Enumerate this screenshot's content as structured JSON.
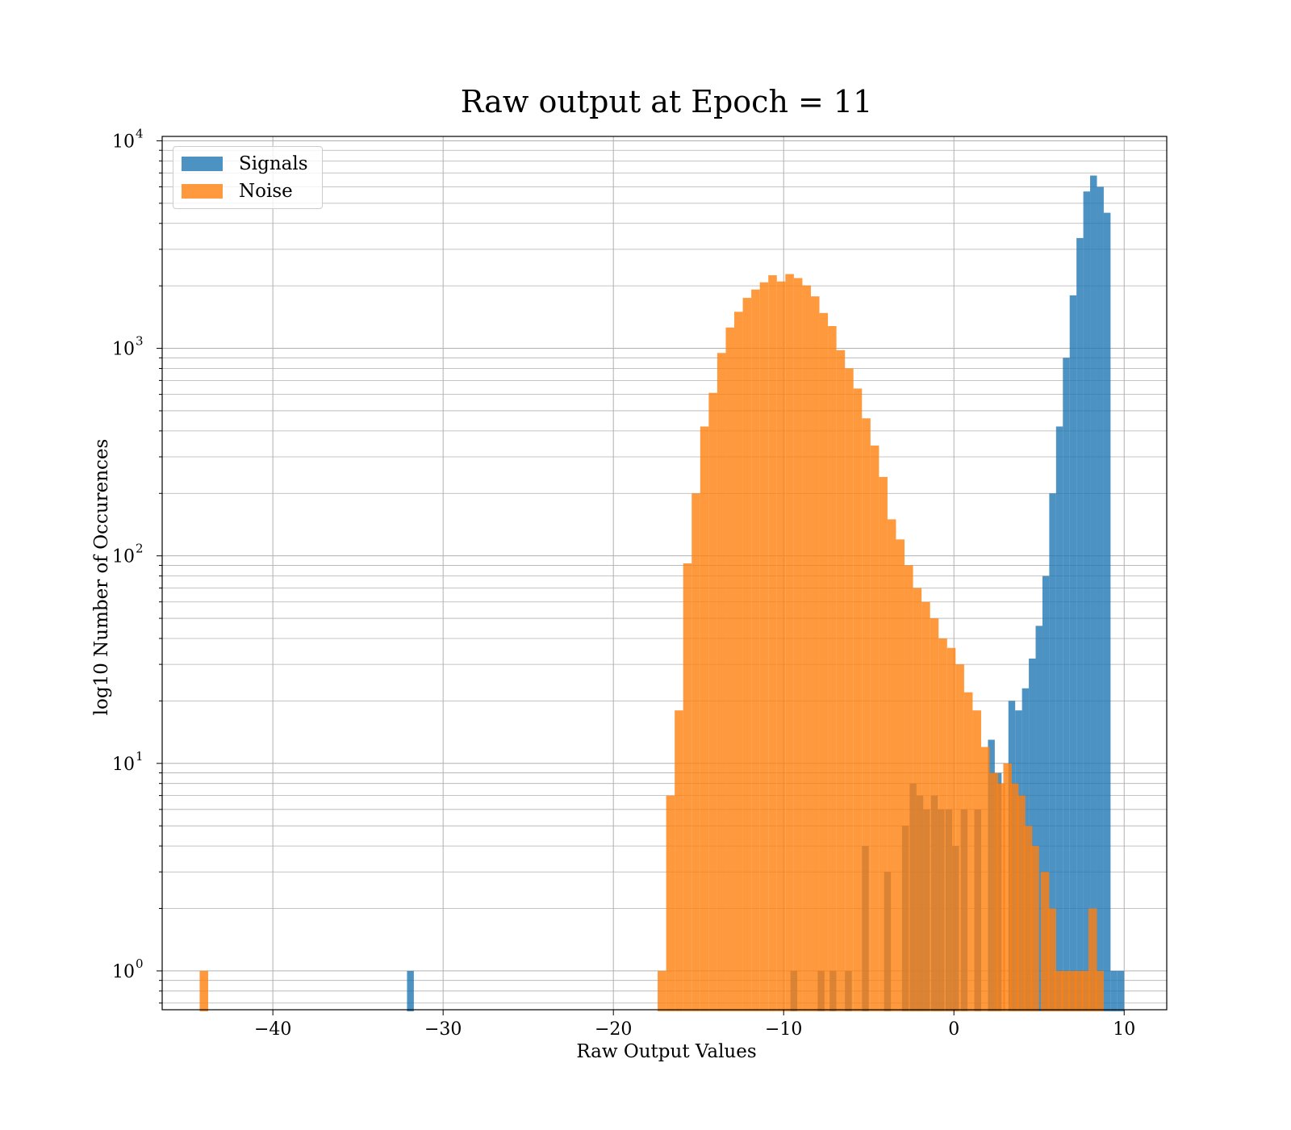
{
  "chart_data": {
    "type": "bar",
    "title": "Raw output at Epoch = 11",
    "xlabel": "Raw Output Values",
    "ylabel": "log10 Number of Occurences",
    "x_range": [
      -46.5,
      12.5
    ],
    "y_range": [
      0.65,
      10500
    ],
    "y_scale": "log",
    "x_ticks": [
      -40,
      -30,
      -20,
      -10,
      0,
      10
    ],
    "x_tick_labels": [
      "−40",
      "−30",
      "−20",
      "−10",
      "0",
      "10"
    ],
    "y_ticks": [
      1,
      10,
      100,
      1000,
      10000
    ],
    "y_tick_labels": [
      "10",
      "10",
      "10",
      "10",
      "10"
    ],
    "y_tick_exponents": [
      "0",
      "1",
      "2",
      "3",
      "4"
    ],
    "grid": true,
    "legend_position": "top-left",
    "series": [
      {
        "name": "Signals",
        "color": "#1f77b4",
        "opacity": 0.8,
        "bin_left_edges": [
          -32.12,
          -9.6,
          -8.0,
          -7.3,
          -6.4,
          -5.4,
          -4.1,
          -3.05,
          -2.6,
          -2.2,
          -1.8,
          -1.35,
          -0.95,
          -0.5,
          -0.1,
          0.4,
          1.2,
          2.0,
          2.4,
          3.2,
          3.6,
          4.0,
          4.4,
          4.8,
          5.2,
          5.6,
          6.0,
          6.4,
          6.8,
          7.2,
          7.6,
          8.0,
          8.4,
          8.8,
          9.2,
          9.6
        ],
        "bin_width": 0.4,
        "values": [
          1,
          1,
          1,
          1,
          1,
          4,
          3,
          5,
          8,
          7,
          6,
          7,
          6,
          6,
          4,
          6,
          6,
          13,
          9,
          20,
          18,
          23,
          32,
          46,
          80,
          200,
          420,
          900,
          1800,
          3400,
          5700,
          6800,
          6000,
          4500,
          1,
          1
        ]
      },
      {
        "name": "Noise",
        "color": "#ff7f0e",
        "opacity": 0.8,
        "bin_left_edges": [
          -44.3,
          -17.4,
          -16.9,
          -16.4,
          -15.9,
          -15.4,
          -14.9,
          -14.4,
          -13.9,
          -13.4,
          -12.9,
          -12.4,
          -11.9,
          -11.4,
          -10.9,
          -10.4,
          -9.9,
          -9.4,
          -8.9,
          -8.4,
          -7.9,
          -7.4,
          -6.9,
          -6.4,
          -5.9,
          -5.4,
          -4.9,
          -4.4,
          -3.9,
          -3.4,
          -2.9,
          -2.4,
          -1.9,
          -1.4,
          -0.9,
          -0.4,
          0.1,
          0.6,
          1.1,
          1.6,
          2.1,
          2.5,
          2.9,
          3.3,
          3.7,
          4.1,
          4.5,
          5.1,
          5.5,
          5.9,
          6.3,
          6.7,
          7.1,
          7.5,
          7.9,
          8.3
        ],
        "bin_width": 0.5,
        "values": [
          1,
          1,
          7,
          18,
          92,
          200,
          420,
          610,
          950,
          1260,
          1500,
          1750,
          1920,
          2080,
          2250,
          2100,
          2280,
          2180,
          2010,
          1780,
          1480,
          1280,
          980,
          800,
          640,
          460,
          340,
          240,
          150,
          120,
          90,
          70,
          60,
          50,
          40,
          36,
          30,
          22,
          18,
          12,
          9,
          8,
          10,
          8,
          7,
          5,
          4,
          3,
          2,
          1,
          1,
          1,
          1,
          1,
          2,
          1
        ]
      }
    ]
  }
}
